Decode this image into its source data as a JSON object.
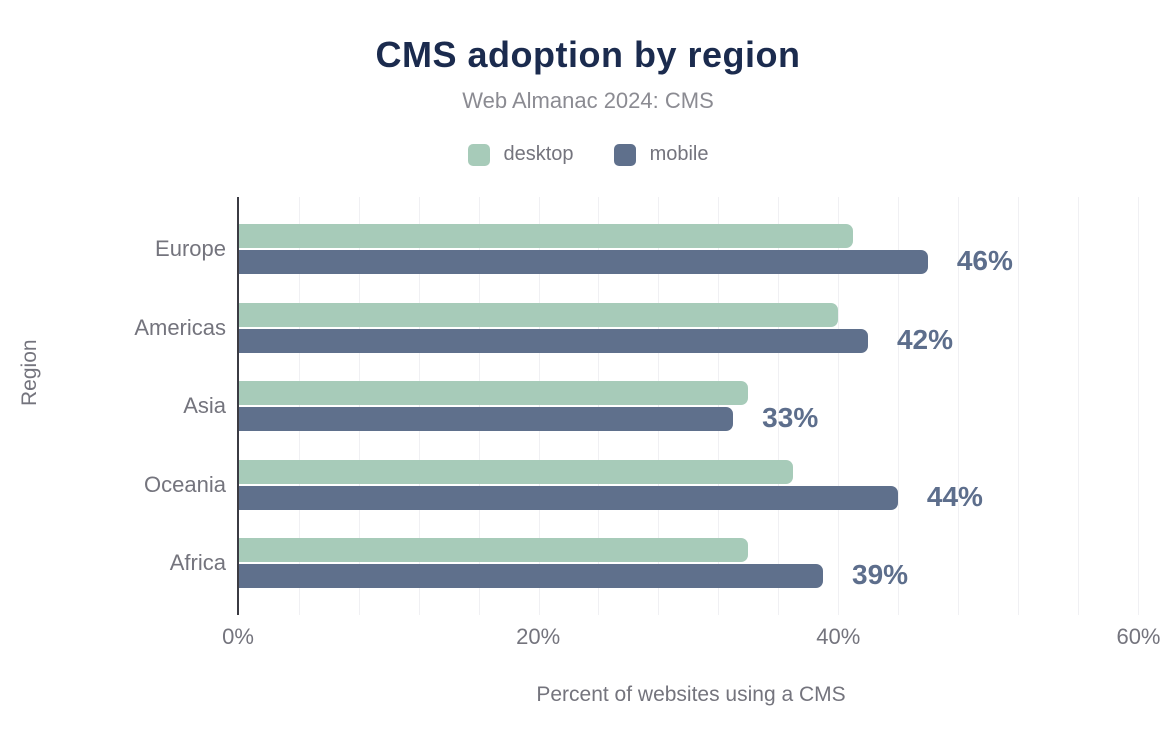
{
  "chart_data": {
    "type": "bar",
    "orientation": "horizontal",
    "title": "CMS adoption by region",
    "subtitle": "Web Almanac 2024: CMS",
    "xlabel": "Percent of websites using a CMS",
    "ylabel": "Region",
    "categories": [
      "Europe",
      "Americas",
      "Asia",
      "Oceania",
      "Africa"
    ],
    "series": [
      {
        "name": "desktop",
        "color": "#a7cbb9",
        "values": [
          41,
          40,
          34,
          37,
          34
        ]
      },
      {
        "name": "mobile",
        "color": "#5f708c",
        "values": [
          46,
          42,
          33,
          44,
          39
        ]
      }
    ],
    "bar_labels": [
      "46%",
      "42%",
      "33%",
      "44%",
      "39%"
    ],
    "x_ticks": [
      {
        "value": 0,
        "label": "0%"
      },
      {
        "value": 20,
        "label": "20%"
      },
      {
        "value": 40,
        "label": "40%"
      },
      {
        "value": 60,
        "label": "60%"
      }
    ],
    "xlim": [
      0,
      60.5
    ],
    "minor_gridline_step": 4,
    "grid": "vertical-minor-gridlines",
    "legend_position": "top-center"
  },
  "colors": {
    "title": "#1b2b4e",
    "subtitle": "#8b8b92",
    "axis_labels": "#74747d",
    "value_labels": "#5d6e8c",
    "gridline": "#f0f0f3",
    "axis_line": "#3b3b43",
    "desktop": "#a7cbb9",
    "mobile": "#5f708c",
    "background": "#ffffff"
  }
}
